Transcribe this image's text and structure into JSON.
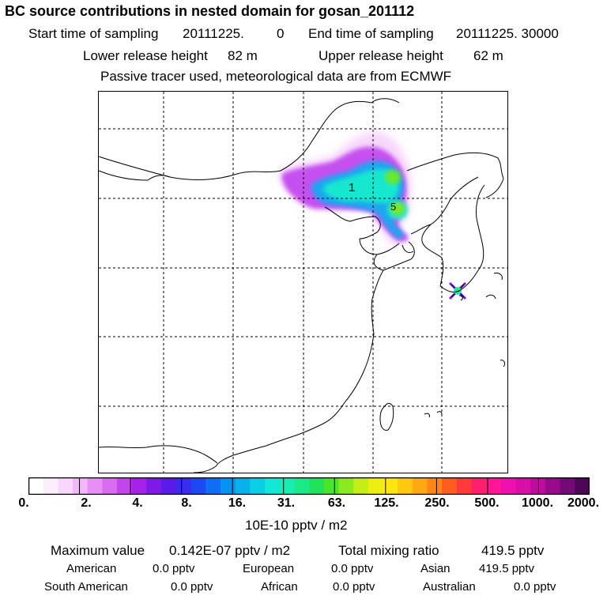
{
  "title": "BC  source contributions in nested domain for gosan_201112",
  "header": {
    "start_label": "Start time of sampling",
    "start_value": "20111225.",
    "start_hour": "0",
    "end_label": "End time of sampling",
    "end_value": "20111225. 30000",
    "lower_label": "Lower release height",
    "lower_value": "82 m",
    "upper_label": "Upper release height",
    "upper_value": "62 m",
    "note": "Passive tracer used, meteorological data are from ECMWF"
  },
  "map": {
    "contour_labels": [
      "1",
      "5"
    ],
    "receptor_marker": "site-marker"
  },
  "colorbar": {
    "tick_labels": [
      "0.",
      "2.",
      "4.",
      "8.",
      "16.",
      "31.",
      "63.",
      "125.",
      "250.",
      "500.",
      "1000.",
      "2000."
    ],
    "unit": "10E-10 pptv / m2",
    "colors": [
      "#ffffff",
      "#fdeefe",
      "#f9d7fc",
      "#f2b7f8",
      "#e88ff5",
      "#d96cf0",
      "#c445ec",
      "#a520e8",
      "#7f19e6",
      "#5a1ae8",
      "#3a2bf0",
      "#1f48f5",
      "#0f6ef5",
      "#0791f2",
      "#08b0ec",
      "#0acde6",
      "#12e6d6",
      "#18edb3",
      "#1be887",
      "#20e35a",
      "#4ae52b",
      "#8ce81f",
      "#c4ec16",
      "#ecef10",
      "#ffe612",
      "#ffc810",
      "#ffa812",
      "#ff8418",
      "#ff5c20",
      "#ff3a3a",
      "#ff1f6c",
      "#ff1496",
      "#f010b0",
      "#d80ea8",
      "#bd0c9e",
      "#9a0a8c",
      "#750a76",
      "#4d0658"
    ]
  },
  "footer": {
    "max_label": "Maximum value",
    "max_value": "0.142E-07 pptv / m2",
    "total_label": "Total mixing ratio",
    "total_value": "419.5 pptv",
    "regions": [
      {
        "name": "American",
        "value": "0.0 pptv"
      },
      {
        "name": "European",
        "value": "0.0 pptv"
      },
      {
        "name": "Asian",
        "value": "419.5 pptv"
      },
      {
        "name": "South American",
        "value": "0.0 pptv"
      },
      {
        "name": "African",
        "value": "0.0 pptv"
      },
      {
        "name": "Australian",
        "value": "0.0 pptv"
      }
    ]
  },
  "chart_data": {
    "type": "heatmap",
    "title": "BC  source contributions in nested domain for gosan_201112",
    "colorbar_levels": [
      0,
      2,
      4,
      8,
      16,
      31,
      63,
      125,
      250,
      500,
      1000,
      2000
    ],
    "colorbar_unit": "10E-10 pptv / m2",
    "contour_labels": [
      1,
      5
    ],
    "maximum_value": "0.142E-07 pptv / m2",
    "total_mixing_ratio": "419.5 pptv",
    "grid": true
  }
}
